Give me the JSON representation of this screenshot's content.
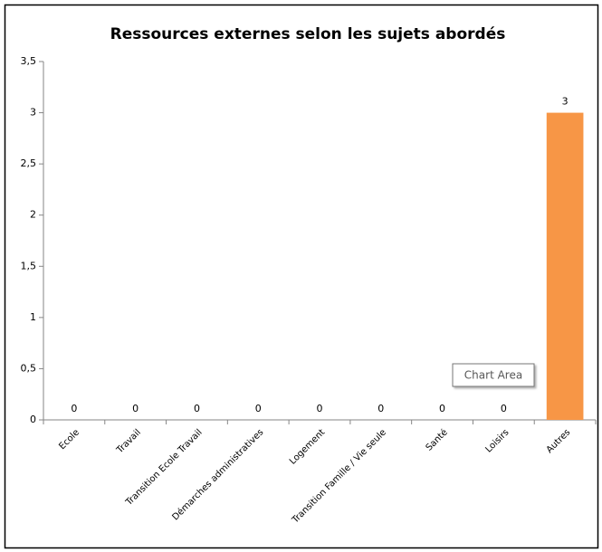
{
  "chart_data": {
    "type": "bar",
    "title": "Ressources externes selon les sujets abordés",
    "categories": [
      "Ecole",
      "Travail",
      "Transition Ecole Travail",
      "Démarches administratives",
      "Logement",
      "Transition Famille / Vie seule",
      "Santé",
      "Loisirs",
      "Autres"
    ],
    "values": [
      0,
      0,
      0,
      0,
      0,
      0,
      0,
      0,
      3
    ],
    "color": "#f79646",
    "ylim": [
      0,
      3.5
    ],
    "yticks": [
      0,
      {
        "value": 0.5,
        "label": "0,5"
      },
      1,
      {
        "value": 1.5,
        "label": "1,5"
      },
      2,
      {
        "value": 2.5,
        "label": "2,5"
      },
      3,
      {
        "value": 3.5,
        "label": "3,5"
      }
    ],
    "grid": false,
    "tooltip": "Chart Area"
  }
}
